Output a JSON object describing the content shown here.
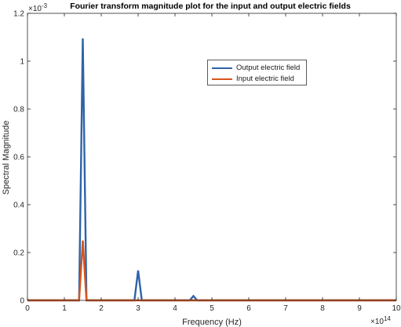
{
  "chart_data": {
    "type": "line",
    "title": "Fourier transform magnitude plot for the input and output electric fields",
    "xlabel": "Frequency (Hz)",
    "ylabel": "Spectral Magnitude",
    "x_exponent_label": "×10",
    "x_exponent_power": "14",
    "y_exponent_label": "×10",
    "y_exponent_power": "-3",
    "x_scale": 100000000000000.0,
    "y_scale": 0.001,
    "xlim": [
      0,
      10
    ],
    "ylim": [
      0,
      1.2
    ],
    "x_ticks": [
      0,
      1,
      2,
      3,
      4,
      5,
      6,
      7,
      8,
      9,
      10
    ],
    "x_tick_labels": [
      "0",
      "1",
      "2",
      "3",
      "4",
      "5",
      "6",
      "7",
      "8",
      "9",
      "10"
    ],
    "y_ticks": [
      0,
      0.2,
      0.4,
      0.6,
      0.8,
      1,
      1.2
    ],
    "y_tick_labels": [
      "0",
      "0.2",
      "0.4",
      "0.6",
      "0.8",
      "1",
      "1.2"
    ],
    "grid": false,
    "legend_position": "upper-right-center",
    "series": [
      {
        "name": "Output electric field",
        "color": "#2e63a8",
        "x": [
          0,
          1.4,
          1.5,
          1.6,
          2.9,
          3.0,
          3.1,
          4.4,
          4.5,
          4.6,
          10
        ],
        "y": [
          0,
          0,
          1.095,
          0,
          0,
          0.125,
          0,
          0,
          0.018,
          0,
          0
        ]
      },
      {
        "name": "Input electric field",
        "color": "#d9541a",
        "x": [
          0,
          1.4,
          1.5,
          1.6,
          10
        ],
        "y": [
          0,
          0,
          0.25,
          0,
          0
        ]
      }
    ]
  }
}
